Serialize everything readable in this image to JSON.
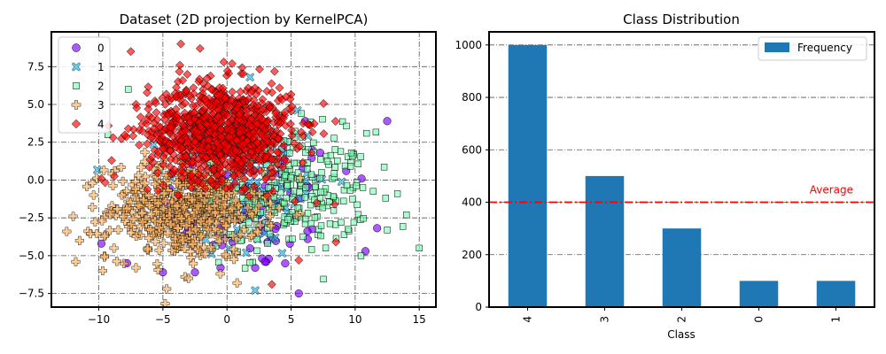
{
  "chart_data": [
    {
      "type": "scatter",
      "title": "Dataset (2D projection by KernelPCA)",
      "xlim": [
        -13.7,
        16.3
      ],
      "ylim": [
        -8.4,
        9.8
      ],
      "xticks": [
        -10,
        -5,
        0,
        5,
        10,
        15
      ],
      "xtick_labels": [
        "−10",
        "−5",
        "0",
        "5",
        "10",
        "15"
      ],
      "yticks": [
        -7.5,
        -5.0,
        -2.5,
        0.0,
        2.5,
        5.0,
        7.5
      ],
      "ytick_labels": [
        "−7.5",
        "−5.0",
        "−2.5",
        "0.0",
        "2.5",
        "5.0",
        "7.5"
      ],
      "grid": true,
      "legend_position": "top-left",
      "series": [
        {
          "name": "0",
          "color": "#8000ff",
          "marker": "circle",
          "count": 100,
          "center": [
            2.0,
            -1.5
          ],
          "spread": [
            3.5,
            2.3
          ],
          "points": [
            [
              12.5,
              3.9
            ],
            [
              10.8,
              -4.7
            ],
            [
              -9.8,
              -4.2
            ],
            [
              -7.8,
              -5.5
            ],
            [
              -5.0,
              -6.1
            ],
            [
              -2.5,
              -6.1
            ],
            [
              -0.5,
              -5.8
            ],
            [
              2.2,
              -5.8
            ],
            [
              5.6,
              -7.5
            ],
            [
              6.3,
              -3.9
            ],
            [
              9.3,
              0.6
            ],
            [
              10.5,
              0.1
            ],
            [
              3.5,
              2.3
            ],
            [
              6.1,
              3.9
            ],
            [
              -4.3,
              0.4
            ]
          ]
        },
        {
          "name": "1",
          "color": "#1cb2e3",
          "marker": "x",
          "count": 100,
          "center": [
            2.0,
            -0.5
          ],
          "spread": [
            3.0,
            2.5
          ],
          "points": [
            [
              1.5,
              -4.8
            ],
            [
              2.2,
              -7.3
            ],
            [
              5.5,
              4.6
            ],
            [
              1.8,
              6.8
            ],
            [
              5.2,
              -2.3
            ],
            [
              3.0,
              0.5
            ]
          ]
        },
        {
          "name": "2",
          "color": "#80ffb4",
          "marker": "square",
          "count": 300,
          "center": [
            4.5,
            -0.8
          ],
          "spread": [
            3.3,
            2.0
          ],
          "points": [
            [
              15.0,
              -4.5
            ],
            [
              14.0,
              -2.3
            ],
            [
              13.3,
              -0.9
            ],
            [
              12.5,
              -3.3
            ],
            [
              10.6,
              -0.5
            ],
            [
              9.7,
              1.8
            ],
            [
              9.9,
              -2.8
            ],
            [
              -9.3,
              3.0
            ],
            [
              -7.7,
              6.0
            ],
            [
              5.8,
              4.4
            ]
          ]
        },
        {
          "name": "3",
          "color": "#ffb360",
          "marker": "plus",
          "count": 500,
          "center": [
            -3.3,
            -2.0
          ],
          "spread": [
            3.0,
            1.6
          ],
          "points": [
            [
              -12.5,
              -3.4
            ],
            [
              -12.0,
              -2.4
            ],
            [
              -11.5,
              -4.0
            ],
            [
              -11.8,
              -5.4
            ],
            [
              -9.7,
              -6.0
            ],
            [
              -7.1,
              -5.8
            ],
            [
              -4.7,
              -7.2
            ],
            [
              -3.0,
              -6.5
            ],
            [
              -5.5,
              0.2
            ],
            [
              -10.5,
              -1.8
            ]
          ]
        },
        {
          "name": "4",
          "color": "#ff0000",
          "marker": "diamond",
          "count": 1000,
          "center": [
            -0.5,
            3.2
          ],
          "spread": [
            2.8,
            1.6
          ],
          "points": [
            [
              -9.8,
              0.1
            ],
            [
              -9.0,
              1.3
            ],
            [
              -7.7,
              3.4
            ],
            [
              -7.5,
              8.5
            ],
            [
              -3.6,
              9.0
            ],
            [
              -2.1,
              8.7
            ],
            [
              0.4,
              7.7
            ],
            [
              6.3,
              3.7
            ],
            [
              7.0,
              -1.5
            ],
            [
              5.6,
              -5.3
            ],
            [
              3.5,
              -6.9
            ],
            [
              8.4,
              -1.6
            ],
            [
              8.5,
              -4.1
            ]
          ]
        }
      ]
    },
    {
      "type": "bar",
      "title": "Class Distribution",
      "xlabel": "Class",
      "ylabel": "",
      "categories": [
        "4",
        "3",
        "2",
        "0",
        "1"
      ],
      "values": [
        1000,
        500,
        300,
        100,
        100
      ],
      "ylim": [
        0,
        1050
      ],
      "yticks": [
        0,
        200,
        400,
        600,
        800,
        1000
      ],
      "color": "#1f77b4",
      "grid": true,
      "legend": [
        "Frequency"
      ],
      "legend_position": "top-right",
      "reference_line": {
        "value": 400,
        "label": "Average",
        "color": "#ff0000",
        "style": "dash-dot"
      }
    }
  ]
}
